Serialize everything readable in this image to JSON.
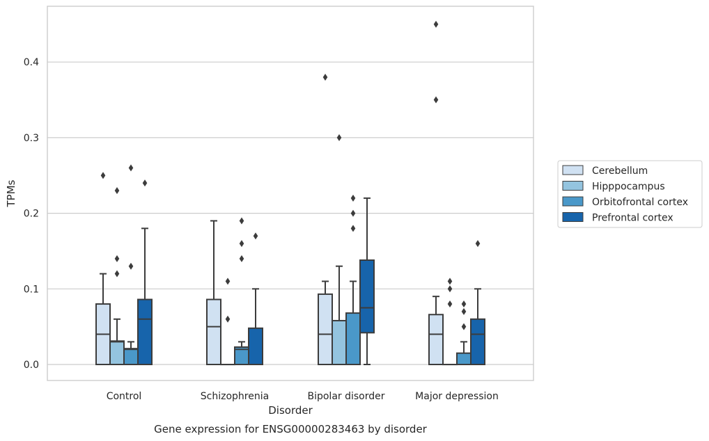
{
  "caption": "Gene expression for ENSG00000283463 by disorder",
  "chart_data": {
    "type": "box",
    "xlabel": "Disorder",
    "ylabel": "TPMs",
    "categories": [
      "Control",
      "Schizophrenia",
      "Bipolar disorder",
      "Major depression"
    ],
    "y_ticks": [
      0.0,
      0.1,
      0.2,
      0.3,
      0.4
    ],
    "y_tick_labels": [
      "0.0",
      "0.1",
      "0.2",
      "0.3",
      "0.4"
    ],
    "ylim": [
      -0.022,
      0.475
    ],
    "grid": "horizontal",
    "legend_position": "right",
    "series": [
      {
        "name": "Cerebellum",
        "color": "#d0e1f2",
        "boxes": [
          {
            "q1": 0.0,
            "median": 0.04,
            "q3": 0.08,
            "whisker_low": 0.0,
            "whisker_high": 0.12,
            "outliers": [
              0.25
            ]
          },
          {
            "q1": 0.0,
            "median": 0.05,
            "q3": 0.086,
            "whisker_low": 0.0,
            "whisker_high": 0.19,
            "outliers": []
          },
          {
            "q1": 0.0,
            "median": 0.04,
            "q3": 0.093,
            "whisker_low": 0.0,
            "whisker_high": 0.11,
            "outliers": [
              0.38
            ]
          },
          {
            "q1": 0.0,
            "median": 0.04,
            "q3": 0.066,
            "whisker_low": 0.0,
            "whisker_high": 0.09,
            "outliers": [
              0.35,
              0.45
            ]
          }
        ]
      },
      {
        "name": "Hipppocampus",
        "color": "#94c4df",
        "boxes": [
          {
            "q1": 0.0,
            "median": 0.03,
            "q3": 0.031,
            "whisker_low": 0.0,
            "whisker_high": 0.06,
            "outliers": [
              0.12,
              0.14,
              0.23
            ]
          },
          {
            "q1": 0.0,
            "median": 0.0,
            "q3": 0.0,
            "whisker_low": 0.0,
            "whisker_high": 0.0,
            "outliers": [
              0.06,
              0.11
            ]
          },
          {
            "q1": 0.0,
            "median": 0.0,
            "q3": 0.058,
            "whisker_low": 0.0,
            "whisker_high": 0.13,
            "outliers": [
              0.3
            ]
          },
          {
            "q1": 0.0,
            "median": 0.0,
            "q3": 0.0,
            "whisker_low": 0.0,
            "whisker_high": 0.0,
            "outliers": [
              0.08,
              0.1,
              0.11
            ]
          }
        ]
      },
      {
        "name": "Orbitofrontal cortex",
        "color": "#4a98c9",
        "boxes": [
          {
            "q1": 0.0,
            "median": 0.02,
            "q3": 0.021,
            "whisker_low": 0.0,
            "whisker_high": 0.03,
            "outliers": [
              0.13,
              0.26
            ]
          },
          {
            "q1": 0.0,
            "median": 0.02,
            "q3": 0.023,
            "whisker_low": 0.0,
            "whisker_high": 0.03,
            "outliers": [
              0.14,
              0.16,
              0.19
            ]
          },
          {
            "q1": 0.0,
            "median": 0.0,
            "q3": 0.068,
            "whisker_low": 0.0,
            "whisker_high": 0.11,
            "outliers": [
              0.18,
              0.2,
              0.22
            ]
          },
          {
            "q1": 0.0,
            "median": 0.0,
            "q3": 0.015,
            "whisker_low": 0.0,
            "whisker_high": 0.03,
            "outliers": [
              0.05,
              0.07,
              0.08
            ]
          }
        ]
      },
      {
        "name": "Prefrontal cortex",
        "color": "#1764ab",
        "boxes": [
          {
            "q1": 0.0,
            "median": 0.06,
            "q3": 0.086,
            "whisker_low": 0.0,
            "whisker_high": 0.18,
            "outliers": [
              0.24
            ]
          },
          {
            "q1": 0.0,
            "median": 0.0,
            "q3": 0.048,
            "whisker_low": 0.0,
            "whisker_high": 0.1,
            "outliers": [
              0.17
            ]
          },
          {
            "q1": 0.042,
            "median": 0.075,
            "q3": 0.138,
            "whisker_low": 0.0,
            "whisker_high": 0.22,
            "outliers": []
          },
          {
            "q1": 0.0,
            "median": 0.04,
            "q3": 0.06,
            "whisker_low": 0.0,
            "whisker_high": 0.1,
            "outliers": [
              0.16
            ]
          }
        ]
      }
    ]
  }
}
